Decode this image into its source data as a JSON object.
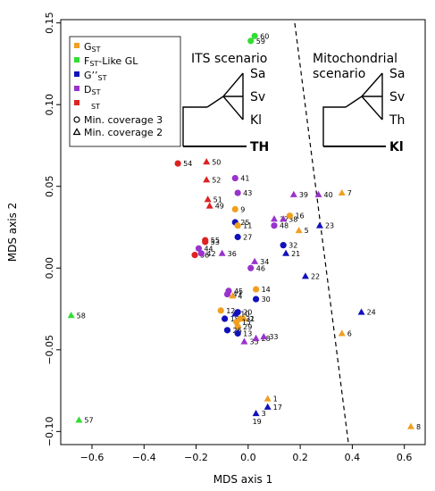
{
  "chart_data": {
    "type": "scatter",
    "xlabel": "MDS axis 1",
    "ylabel": "MDS axis 2",
    "xlim": [
      -0.72,
      0.68
    ],
    "ylim": [
      -0.108,
      0.152
    ],
    "xticks": [
      "−0.6",
      "−0.4",
      "−0.2",
      "0.0",
      "0.2",
      "0.4",
      "0.6"
    ],
    "xtick_values": [
      -0.6,
      -0.4,
      -0.2,
      0.0,
      0.2,
      0.4,
      0.6
    ],
    "yticks": [
      "−0.10",
      "−0.05",
      "0.00",
      "0.05",
      "0.10",
      "0.15"
    ],
    "ytick_values": [
      -0.1,
      -0.05,
      0.0,
      0.05,
      0.1,
      0.15
    ],
    "grid": false,
    "legend_position": "top-left",
    "series": [
      {
        "key": "gst",
        "color": "#f0a020"
      },
      {
        "key": "fst",
        "color": "#33dd33"
      },
      {
        "key": "g2st",
        "color": "#1111bb"
      },
      {
        "key": "dst",
        "color": "#9933cc"
      },
      {
        "key": "st",
        "color": "#dd2222"
      }
    ],
    "legend": {
      "series": [
        {
          "key": "gst",
          "main": "G",
          "sub": "ST"
        },
        {
          "key": "fst",
          "main": "F",
          "sub": "ST",
          "suffix": "-Like GL"
        },
        {
          "key": "g2st",
          "main": "G’’",
          "sub": "ST"
        },
        {
          "key": "dst",
          "main": "D",
          "sub": "ST"
        },
        {
          "key": "st",
          "main": "",
          "sub": "ST"
        }
      ],
      "markers": [
        {
          "shape": "circle",
          "label": "Min. coverage 3"
        },
        {
          "shape": "triangle",
          "label": "Min. coverage 2"
        }
      ]
    },
    "points": [
      {
        "label": "60",
        "series": "fst",
        "shape": "circle",
        "x": 0.025,
        "y": 0.142
      },
      {
        "label": "59",
        "series": "fst",
        "shape": "circle",
        "x": 0.01,
        "y": 0.139
      },
      {
        "label": "58",
        "series": "fst",
        "shape": "triangle",
        "x": -0.68,
        "y": -0.029
      },
      {
        "label": "57",
        "series": "fst",
        "shape": "triangle",
        "x": -0.65,
        "y": -0.093
      },
      {
        "label": "54",
        "series": "st",
        "shape": "circle",
        "x": -0.27,
        "y": 0.064
      },
      {
        "label": "50",
        "series": "st",
        "shape": "triangle",
        "x": -0.16,
        "y": 0.065
      },
      {
        "label": "52",
        "series": "st",
        "shape": "triangle",
        "x": -0.16,
        "y": 0.054
      },
      {
        "label": "51",
        "series": "st",
        "shape": "triangle",
        "x": -0.155,
        "y": 0.042
      },
      {
        "label": "49",
        "series": "st",
        "shape": "triangle",
        "x": -0.148,
        "y": 0.038
      },
      {
        "label": "55",
        "series": "st",
        "shape": "circle",
        "x": -0.165,
        "y": 0.017
      },
      {
        "label": "53",
        "series": "st",
        "shape": "circle",
        "x": -0.165,
        "y": 0.016
      },
      {
        "label": "56",
        "series": "st",
        "shape": "circle",
        "x": -0.205,
        "y": 0.008
      },
      {
        "label": "44",
        "series": "dst",
        "shape": "circle",
        "x": -0.19,
        "y": 0.012
      },
      {
        "label": "42",
        "series": "dst",
        "shape": "circle",
        "x": -0.18,
        "y": 0.009
      },
      {
        "label": "36",
        "series": "dst",
        "shape": "triangle",
        "x": -0.1,
        "y": 0.009
      },
      {
        "label": "41",
        "series": "dst",
        "shape": "circle",
        "x": -0.05,
        "y": 0.055
      },
      {
        "label": "43",
        "series": "dst",
        "shape": "circle",
        "x": -0.04,
        "y": 0.046
      },
      {
        "label": "9",
        "series": "gst",
        "shape": "circle",
        "x": -0.05,
        "y": 0.036
      },
      {
        "label": "25",
        "series": "g2st",
        "shape": "circle",
        "x": -0.05,
        "y": 0.028
      },
      {
        "label": "11",
        "series": "gst",
        "shape": "circle",
        "x": -0.04,
        "y": 0.026
      },
      {
        "label": "27",
        "series": "g2st",
        "shape": "circle",
        "x": -0.04,
        "y": 0.019
      },
      {
        "label": "39",
        "series": "dst",
        "shape": "triangle",
        "x": 0.175,
        "y": 0.045
      },
      {
        "label": "40",
        "series": "dst",
        "shape": "triangle",
        "x": 0.27,
        "y": 0.045
      },
      {
        "label": "7",
        "series": "gst",
        "shape": "triangle",
        "x": 0.36,
        "y": 0.046
      },
      {
        "label": "37",
        "series": "dst",
        "shape": "triangle",
        "x": 0.1,
        "y": 0.03
      },
      {
        "label": "38",
        "series": "dst",
        "shape": "triangle",
        "x": 0.135,
        "y": 0.03
      },
      {
        "label": "16",
        "series": "gst",
        "shape": "circle",
        "x": 0.16,
        "y": 0.032
      },
      {
        "label": "48",
        "series": "dst",
        "shape": "circle",
        "x": 0.1,
        "y": 0.026
      },
      {
        "label": "5",
        "series": "gst",
        "shape": "triangle",
        "x": 0.195,
        "y": 0.023
      },
      {
        "label": "23",
        "series": "g2st",
        "shape": "triangle",
        "x": 0.275,
        "y": 0.026
      },
      {
        "label": "32",
        "series": "g2st",
        "shape": "circle",
        "x": 0.135,
        "y": 0.014
      },
      {
        "label": "21",
        "series": "g2st",
        "shape": "triangle",
        "x": 0.145,
        "y": 0.009
      },
      {
        "label": "34",
        "series": "dst",
        "shape": "triangle",
        "x": 0.025,
        "y": 0.004
      },
      {
        "label": "46",
        "series": "dst",
        "shape": "circle",
        "x": 0.01,
        "y": 0.0
      },
      {
        "label": "22",
        "series": "g2st",
        "shape": "triangle",
        "x": 0.22,
        "y": -0.005
      },
      {
        "label": "45",
        "series": "dst",
        "shape": "circle",
        "x": -0.075,
        "y": -0.014
      },
      {
        "label": "47",
        "series": "dst",
        "shape": "circle",
        "x": -0.08,
        "y": -0.016
      },
      {
        "label": "4",
        "series": "gst",
        "shape": "triangle",
        "x": -0.06,
        "y": -0.017
      },
      {
        "label": "14",
        "series": "gst",
        "shape": "circle",
        "x": 0.03,
        "y": -0.013
      },
      {
        "label": "30",
        "series": "g2st",
        "shape": "circle",
        "x": 0.03,
        "y": -0.019
      },
      {
        "label": "12",
        "series": "gst",
        "shape": "circle",
        "x": -0.105,
        "y": -0.026
      },
      {
        "label": "20",
        "series": "g2st",
        "shape": "circle",
        "x": -0.04,
        "y": -0.027
      },
      {
        "label": "18",
        "series": "g2st",
        "shape": "circle",
        "x": -0.09,
        "y": -0.031
      },
      {
        "label": "10",
        "series": "g2st",
        "shape": "triangle",
        "x": -0.05,
        "y": -0.028
      },
      {
        "label": "31",
        "series": "gst",
        "shape": "circle",
        "x": -0.03,
        "y": -0.031
      },
      {
        "label": "2",
        "series": "gst",
        "shape": "triangle",
        "x": -0.015,
        "y": -0.031
      },
      {
        "label": "15",
        "series": "gst",
        "shape": "circle",
        "x": -0.045,
        "y": -0.033
      },
      {
        "label": "29",
        "series": "gst",
        "shape": "circle",
        "x": -0.04,
        "y": -0.036
      },
      {
        "label": "26",
        "series": "g2st",
        "shape": "circle",
        "x": -0.08,
        "y": -0.038
      },
      {
        "label": "13",
        "series": "g2st",
        "shape": "circle",
        "x": -0.04,
        "y": -0.04
      },
      {
        "label": "35",
        "series": "dst",
        "shape": "triangle",
        "x": -0.015,
        "y": -0.045
      },
      {
        "label": "28",
        "series": "dst",
        "shape": "triangle",
        "x": 0.03,
        "y": -0.043
      },
      {
        "label": "33",
        "series": "dst",
        "shape": "triangle",
        "x": 0.06,
        "y": -0.042
      },
      {
        "label": "24",
        "series": "g2st",
        "shape": "triangle",
        "x": 0.435,
        "y": -0.027
      },
      {
        "label": "6",
        "series": "gst",
        "shape": "triangle",
        "x": 0.36,
        "y": -0.04
      },
      {
        "label": "1",
        "series": "gst",
        "shape": "triangle",
        "x": 0.075,
        "y": -0.08
      },
      {
        "label": "17",
        "series": "g2st",
        "shape": "triangle",
        "x": 0.075,
        "y": -0.085
      },
      {
        "label": "3",
        "series": "g2st",
        "shape": "triangle",
        "x": 0.03,
        "y": -0.089
      },
      {
        "label": "19",
        "series": "g2st",
        "shape": "none",
        "x": 0.03,
        "y": -0.089
      },
      {
        "label": "8",
        "series": "gst",
        "shape": "triangle",
        "x": 0.625,
        "y": -0.097
      }
    ],
    "insets": [
      {
        "title_lines": [
          "ITS scenario"
        ],
        "tips": [
          "Sa",
          "Sv",
          "Kl"
        ],
        "outgroup": "TH"
      },
      {
        "title_lines": [
          "Mitochondrial",
          "scenario"
        ],
        "tips": [
          "Sa",
          "Sv",
          "Th"
        ],
        "outgroup": "Kl"
      }
    ]
  }
}
